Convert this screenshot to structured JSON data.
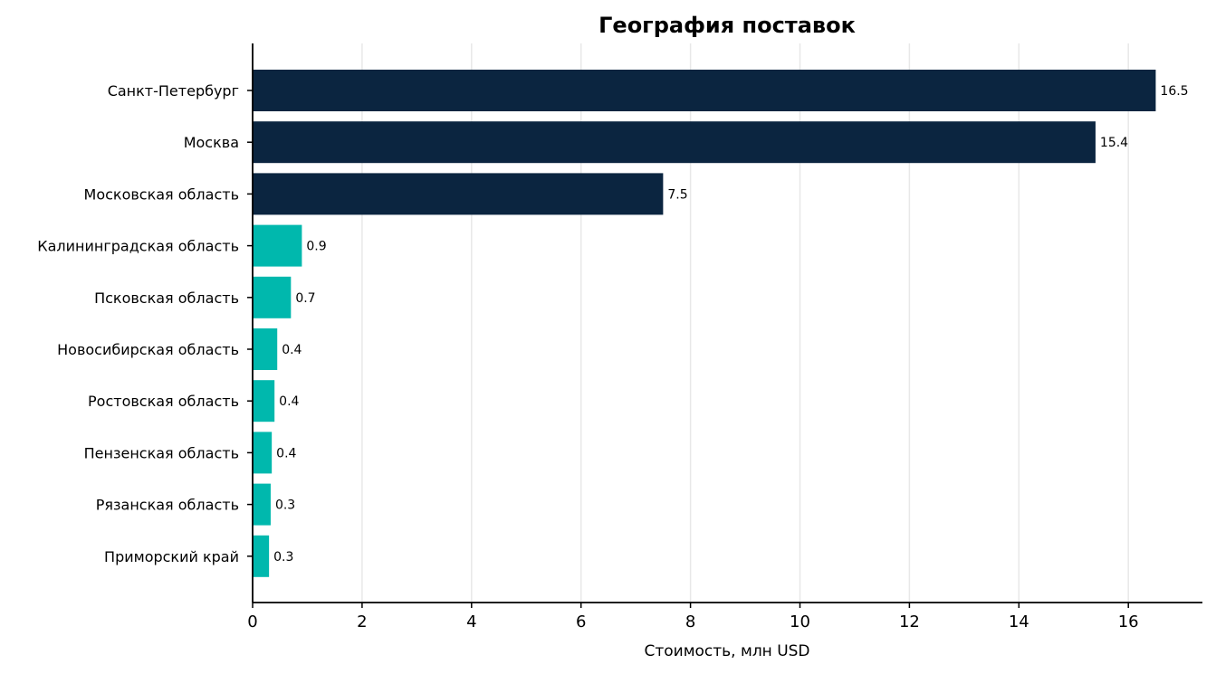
{
  "chart_data": {
    "type": "bar",
    "orientation": "horizontal",
    "title": "География поставок",
    "xlabel": "Стоимость, млн USD",
    "ylabel": "",
    "xlim": [
      0,
      17.3
    ],
    "xticks": [
      0,
      2,
      4,
      6,
      8,
      10,
      12,
      14,
      16
    ],
    "grid": "x",
    "categories": [
      "Санкт-Петербург",
      "Москва",
      "Московская область",
      "Калининградская область",
      "Псковская область",
      "Новосибирская область",
      "Ростовская область",
      "Пензенская область",
      "Рязанская область",
      "Приморский край"
    ],
    "values": [
      16.5,
      15.4,
      7.5,
      0.9,
      0.7,
      0.45,
      0.4,
      0.35,
      0.33,
      0.3
    ],
    "value_labels": [
      "16.5",
      "15.4",
      "7.5",
      "0.9",
      "0.7",
      "0.4",
      "0.4",
      "0.4",
      "0.3",
      "0.3"
    ],
    "colors": {
      "top": "#0b2540",
      "rest": "#00b8ad"
    },
    "highlight_count": 3
  }
}
